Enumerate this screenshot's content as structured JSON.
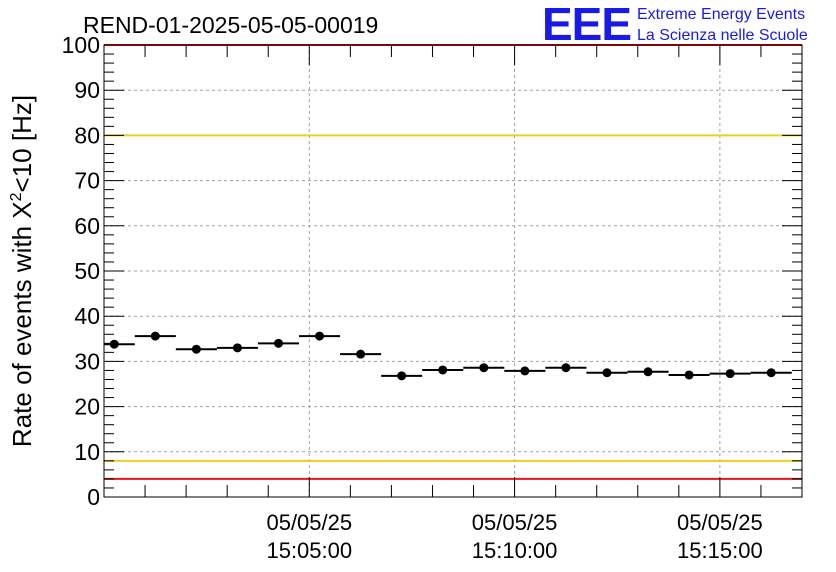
{
  "colors": {
    "limit_red": "#e8141a",
    "limit_yellow": "#f2cd1a",
    "grid": "#a0a0a0",
    "marker": "#000000",
    "logo_blue": "#1a1ae6"
  },
  "logo": {
    "mark": "EEE",
    "line1": "Extreme Energy Events",
    "line2": "La Scienza nelle Scuole"
  },
  "chart_data": {
    "type": "scatter",
    "title": "REND-01-2025-05-05-00019",
    "ylabel_main": "Rate of events with X",
    "ylabel_sup": "2",
    "ylabel_tail": "<10 [Hz]",
    "xlabel": "",
    "ylim": [
      0,
      100
    ],
    "yticks": [
      0,
      10,
      20,
      30,
      40,
      50,
      60,
      70,
      80,
      90,
      100
    ],
    "xlim_seconds": [
      0,
      1020
    ],
    "x_ticks": [
      {
        "t": 300,
        "date": "05/05/25",
        "time": "15:05:00"
      },
      {
        "t": 600,
        "date": "05/05/25",
        "time": "15:10:00"
      },
      {
        "t": 900,
        "date": "05/05/25",
        "time": "15:15:00"
      }
    ],
    "grid": true,
    "reference_lines": [
      {
        "value": 100,
        "color": "limit_red"
      },
      {
        "value": 80,
        "color": "limit_yellow"
      },
      {
        "value": 8,
        "color": "limit_yellow"
      },
      {
        "value": 4,
        "color": "limit_red"
      }
    ],
    "bin_width_seconds": 60,
    "points": [
      {
        "t": 15,
        "y": 33.8
      },
      {
        "t": 75,
        "y": 35.6
      },
      {
        "t": 135,
        "y": 32.7
      },
      {
        "t": 195,
        "y": 33.0
      },
      {
        "t": 255,
        "y": 34.0
      },
      {
        "t": 315,
        "y": 35.6
      },
      {
        "t": 375,
        "y": 31.6
      },
      {
        "t": 435,
        "y": 26.8
      },
      {
        "t": 495,
        "y": 28.1
      },
      {
        "t": 555,
        "y": 28.6
      },
      {
        "t": 615,
        "y": 27.9
      },
      {
        "t": 675,
        "y": 28.6
      },
      {
        "t": 735,
        "y": 27.5
      },
      {
        "t": 795,
        "y": 27.7
      },
      {
        "t": 855,
        "y": 27.0
      },
      {
        "t": 915,
        "y": 27.3
      },
      {
        "t": 975,
        "y": 27.5
      }
    ]
  }
}
